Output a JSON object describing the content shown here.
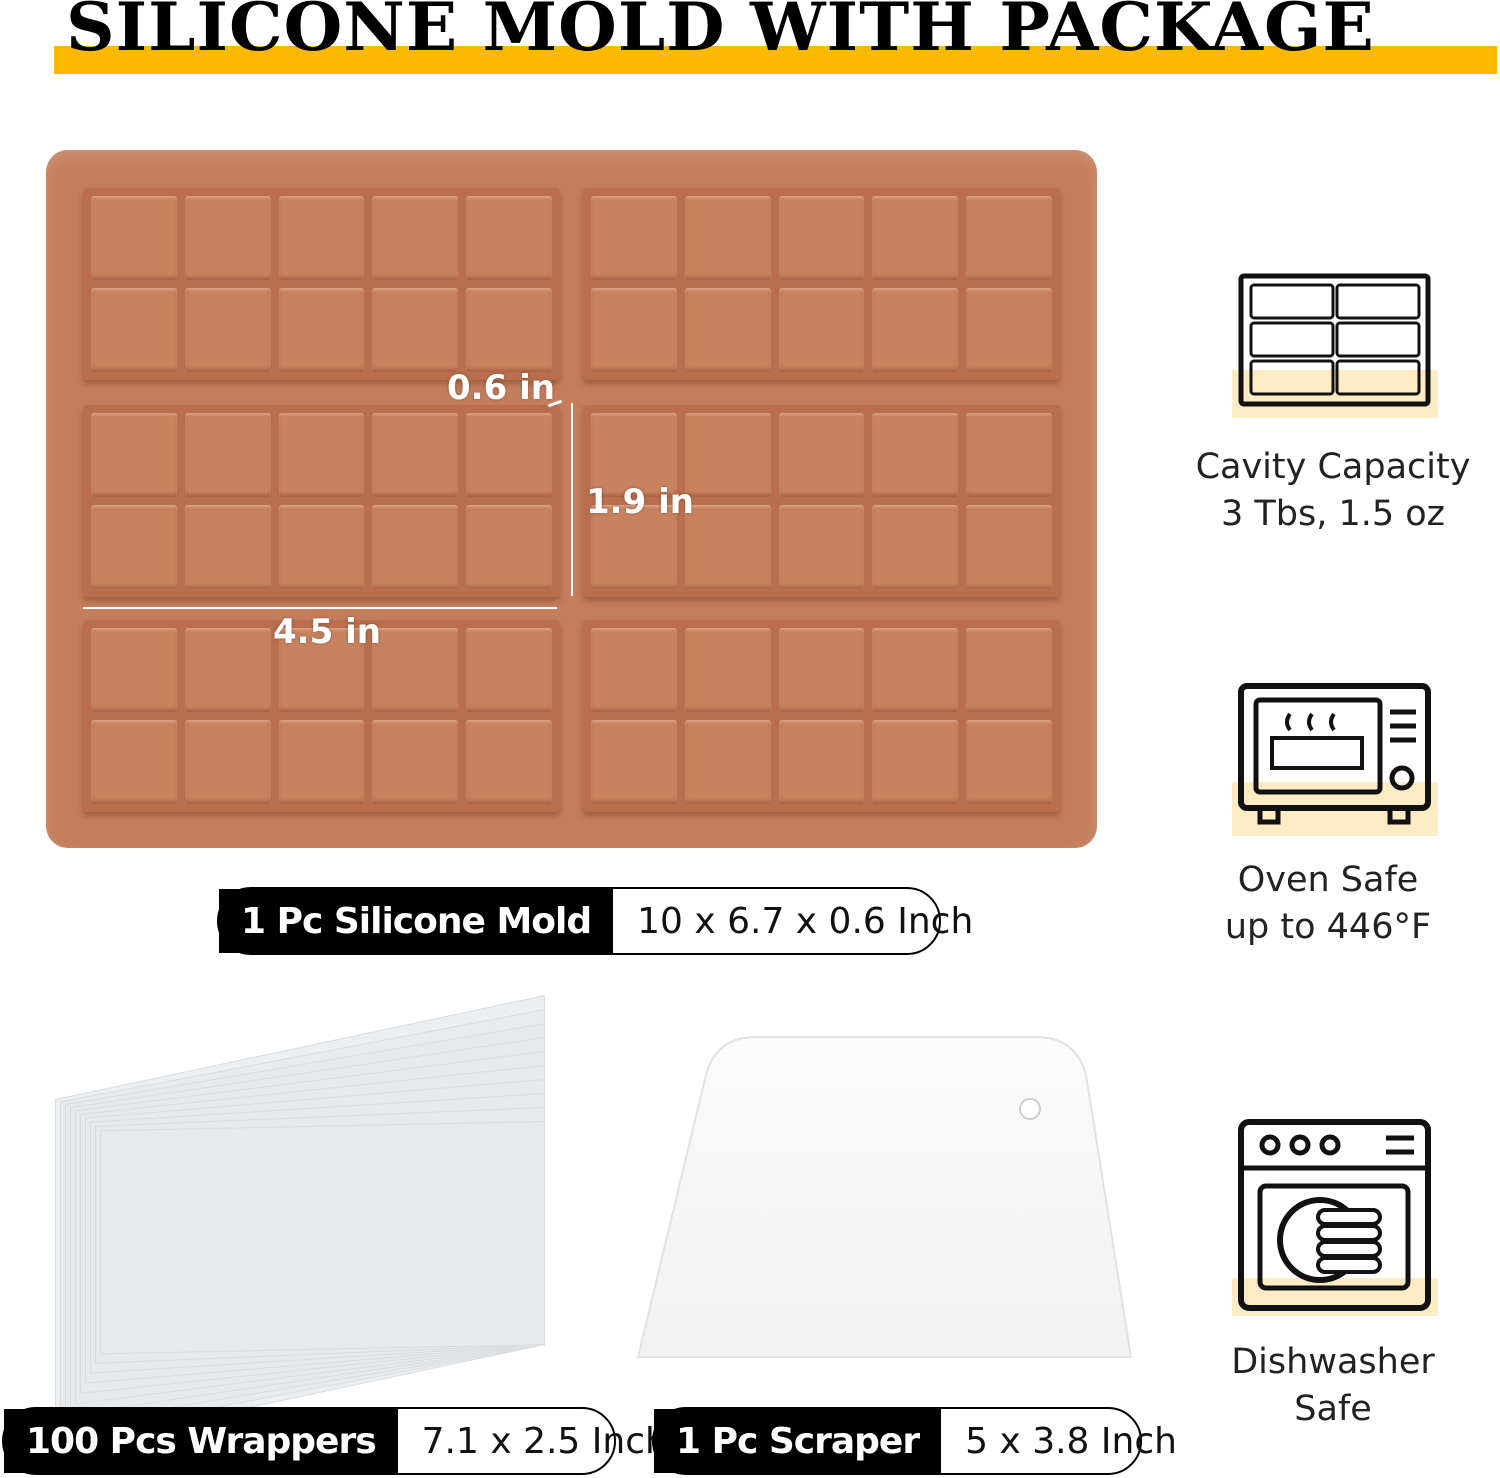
{
  "title": "SILICONE MOLD WITH PACKAGE",
  "colors": {
    "accent": "#fbb900",
    "mold": "#c47e5c",
    "pill": "#000000"
  },
  "mold": {
    "dimensions": {
      "depth": "0.6 in",
      "height": "1.9 in",
      "width": "4.5 in"
    }
  },
  "pills": {
    "mold": {
      "label": "1 Pc Silicone Mold",
      "value": "10 x 6.7 x 0.6 Inch"
    },
    "wrappers": {
      "label": "100 Pcs Wrappers",
      "value": "7.1 x 2.5 Inch"
    },
    "scraper": {
      "label": "1 Pc Scraper",
      "value": "5 x 3.8 Inch"
    }
  },
  "features": [
    {
      "icon": "mold-grid-icon",
      "line1": "Cavity Capacity",
      "line2": "3 Tbs, 1.5 oz"
    },
    {
      "icon": "oven-icon",
      "line1": "Oven Safe",
      "line2": "up to 446°F"
    },
    {
      "icon": "dishwasher-icon",
      "line1": "Dishwasher",
      "line2": "Safe"
    }
  ]
}
